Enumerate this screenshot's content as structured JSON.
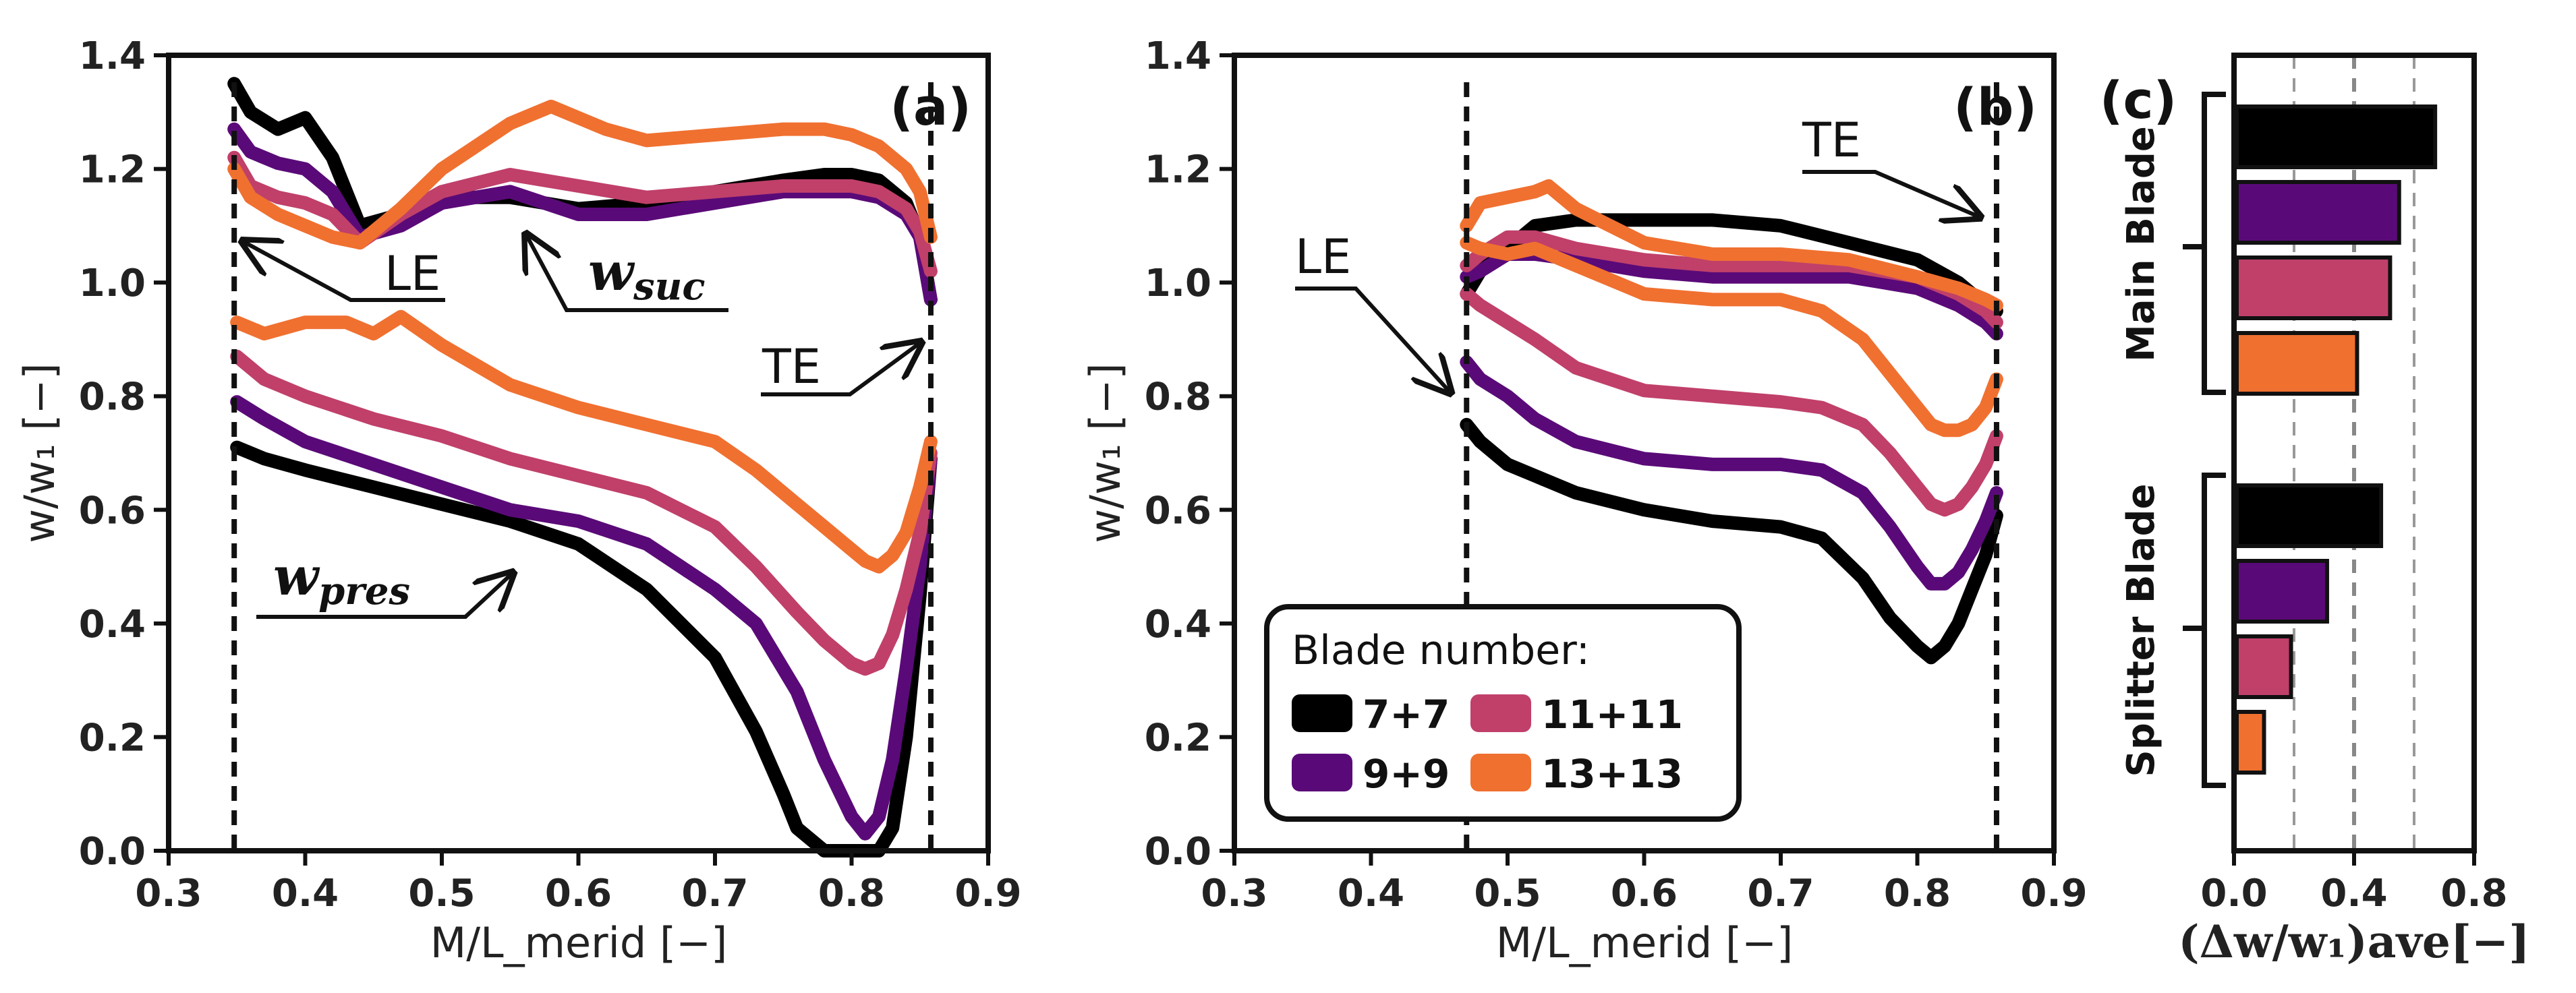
{
  "colors": {
    "7+7": "#000000",
    "9+9": "#5a0a78",
    "11+11": "#c0406a",
    "13+13": "#f07030"
  },
  "chart_data": [
    {
      "type": "line",
      "panel_label": "(a)",
      "xlabel": "M/L_merid [−]",
      "ylabel": "w/w₁ [−]",
      "xlim": [
        0.3,
        0.9
      ],
      "ylim": [
        0.0,
        1.4
      ],
      "xticks": [
        "0.3",
        "0.4",
        "0.5",
        "0.6",
        "0.7",
        "0.8",
        "0.9"
      ],
      "yticks": [
        "0.0",
        "0.2",
        "0.4",
        "0.6",
        "0.8",
        "1.0",
        "1.2",
        "1.4"
      ],
      "annotations": {
        "le": "LE",
        "te": "TE",
        "suction": "w",
        "suction_sub": "suc",
        "pressure": "w",
        "pressure_sub": "pres"
      },
      "reference_lines_x": [
        0.348,
        0.858
      ],
      "series": [
        {
          "name": "7+7 suction",
          "group": "7+7",
          "x": [
            0.348,
            0.36,
            0.38,
            0.4,
            0.42,
            0.44,
            0.47,
            0.5,
            0.55,
            0.6,
            0.65,
            0.7,
            0.75,
            0.78,
            0.8,
            0.82,
            0.84,
            0.85,
            0.858
          ],
          "y": [
            1.35,
            1.3,
            1.27,
            1.29,
            1.22,
            1.1,
            1.12,
            1.15,
            1.15,
            1.13,
            1.14,
            1.16,
            1.18,
            1.19,
            1.19,
            1.18,
            1.14,
            1.08,
            0.97
          ]
        },
        {
          "name": "9+9 suction",
          "group": "9+9",
          "x": [
            0.348,
            0.36,
            0.38,
            0.4,
            0.42,
            0.44,
            0.47,
            0.5,
            0.55,
            0.6,
            0.65,
            0.7,
            0.75,
            0.78,
            0.8,
            0.82,
            0.84,
            0.85,
            0.858
          ],
          "y": [
            1.27,
            1.23,
            1.21,
            1.2,
            1.16,
            1.08,
            1.1,
            1.14,
            1.16,
            1.12,
            1.12,
            1.14,
            1.16,
            1.16,
            1.16,
            1.15,
            1.12,
            1.08,
            0.97
          ]
        },
        {
          "name": "11+11 suction",
          "group": "11+11",
          "x": [
            0.348,
            0.36,
            0.38,
            0.4,
            0.42,
            0.44,
            0.47,
            0.5,
            0.55,
            0.6,
            0.65,
            0.7,
            0.75,
            0.78,
            0.8,
            0.82,
            0.84,
            0.85,
            0.858
          ],
          "y": [
            1.22,
            1.17,
            1.15,
            1.14,
            1.12,
            1.07,
            1.12,
            1.16,
            1.19,
            1.17,
            1.15,
            1.16,
            1.17,
            1.17,
            1.17,
            1.16,
            1.13,
            1.09,
            1.02
          ]
        },
        {
          "name": "13+13 suction",
          "group": "13+13",
          "x": [
            0.348,
            0.36,
            0.38,
            0.4,
            0.42,
            0.44,
            0.47,
            0.5,
            0.55,
            0.58,
            0.62,
            0.65,
            0.7,
            0.75,
            0.78,
            0.8,
            0.82,
            0.84,
            0.85,
            0.858
          ],
          "y": [
            1.2,
            1.15,
            1.12,
            1.1,
            1.08,
            1.07,
            1.13,
            1.2,
            1.28,
            1.31,
            1.27,
            1.25,
            1.26,
            1.27,
            1.27,
            1.26,
            1.24,
            1.2,
            1.16,
            1.08
          ]
        },
        {
          "name": "7+7 pressure",
          "group": "7+7",
          "x": [
            0.35,
            0.37,
            0.4,
            0.45,
            0.5,
            0.55,
            0.6,
            0.65,
            0.7,
            0.73,
            0.75,
            0.76,
            0.78,
            0.8,
            0.81,
            0.82,
            0.83,
            0.84,
            0.85,
            0.858
          ],
          "y": [
            0.71,
            0.69,
            0.67,
            0.64,
            0.61,
            0.58,
            0.54,
            0.46,
            0.34,
            0.21,
            0.1,
            0.04,
            0.0,
            0.0,
            0.0,
            0.0,
            0.04,
            0.2,
            0.45,
            0.69
          ]
        },
        {
          "name": "9+9 pressure",
          "group": "9+9",
          "x": [
            0.35,
            0.37,
            0.4,
            0.45,
            0.5,
            0.55,
            0.6,
            0.65,
            0.7,
            0.73,
            0.76,
            0.78,
            0.8,
            0.81,
            0.82,
            0.83,
            0.84,
            0.85,
            0.858
          ],
          "y": [
            0.79,
            0.76,
            0.72,
            0.68,
            0.64,
            0.6,
            0.58,
            0.54,
            0.46,
            0.4,
            0.28,
            0.16,
            0.06,
            0.03,
            0.06,
            0.16,
            0.32,
            0.5,
            0.69
          ]
        },
        {
          "name": "11+11 pressure",
          "group": "11+11",
          "x": [
            0.35,
            0.37,
            0.4,
            0.45,
            0.5,
            0.55,
            0.6,
            0.65,
            0.7,
            0.73,
            0.76,
            0.78,
            0.8,
            0.81,
            0.82,
            0.83,
            0.84,
            0.85,
            0.858
          ],
          "y": [
            0.87,
            0.83,
            0.8,
            0.76,
            0.73,
            0.69,
            0.66,
            0.63,
            0.57,
            0.5,
            0.42,
            0.37,
            0.33,
            0.32,
            0.33,
            0.38,
            0.46,
            0.56,
            0.7
          ]
        },
        {
          "name": "13+13 pressure",
          "group": "13+13",
          "x": [
            0.35,
            0.37,
            0.4,
            0.43,
            0.45,
            0.47,
            0.5,
            0.55,
            0.6,
            0.65,
            0.7,
            0.73,
            0.76,
            0.78,
            0.8,
            0.81,
            0.82,
            0.83,
            0.84,
            0.85,
            0.858
          ],
          "y": [
            0.93,
            0.91,
            0.93,
            0.93,
            0.91,
            0.94,
            0.89,
            0.82,
            0.78,
            0.75,
            0.72,
            0.67,
            0.61,
            0.57,
            0.53,
            0.51,
            0.5,
            0.52,
            0.56,
            0.64,
            0.72
          ]
        }
      ]
    },
    {
      "type": "line",
      "panel_label": "(b)",
      "xlabel": "M/L_merid [−]",
      "ylabel": "w/w₁ [−]",
      "xlim": [
        0.3,
        0.9
      ],
      "ylim": [
        0.0,
        1.4
      ],
      "xticks": [
        "0.3",
        "0.4",
        "0.5",
        "0.6",
        "0.7",
        "0.8",
        "0.9"
      ],
      "yticks": [
        "0.0",
        "0.2",
        "0.4",
        "0.6",
        "0.8",
        "1.0",
        "1.2",
        "1.4"
      ],
      "annotations": {
        "le": "LE",
        "te": "TE"
      },
      "reference_lines_x": [
        0.47,
        0.858
      ],
      "legend": {
        "title": "Blade number:",
        "entries": [
          "7+7",
          "11+11",
          "9+9",
          "13+13"
        ]
      },
      "series": [
        {
          "name": "7+7 suction",
          "group": "7+7",
          "x": [
            0.47,
            0.48,
            0.5,
            0.52,
            0.55,
            0.6,
            0.65,
            0.7,
            0.75,
            0.8,
            0.83,
            0.85,
            0.858
          ],
          "y": [
            0.98,
            1.02,
            1.06,
            1.1,
            1.11,
            1.11,
            1.11,
            1.1,
            1.07,
            1.04,
            1.0,
            0.96,
            0.95
          ]
        },
        {
          "name": "9+9 suction",
          "group": "9+9",
          "x": [
            0.47,
            0.48,
            0.5,
            0.52,
            0.55,
            0.6,
            0.65,
            0.7,
            0.75,
            0.8,
            0.83,
            0.85,
            0.858
          ],
          "y": [
            1.01,
            1.02,
            1.05,
            1.05,
            1.04,
            1.02,
            1.01,
            1.01,
            1.01,
            0.99,
            0.96,
            0.93,
            0.91
          ]
        },
        {
          "name": "11+11 suction",
          "group": "11+11",
          "x": [
            0.47,
            0.48,
            0.5,
            0.52,
            0.55,
            0.6,
            0.65,
            0.7,
            0.75,
            0.8,
            0.83,
            0.85,
            0.858
          ],
          "y": [
            1.03,
            1.05,
            1.08,
            1.08,
            1.06,
            1.04,
            1.03,
            1.03,
            1.03,
            1.01,
            0.98,
            0.95,
            0.93
          ]
        },
        {
          "name": "13+13 suction",
          "group": "13+13",
          "x": [
            0.47,
            0.48,
            0.5,
            0.52,
            0.53,
            0.55,
            0.6,
            0.65,
            0.7,
            0.75,
            0.8,
            0.83,
            0.85,
            0.858
          ],
          "y": [
            1.1,
            1.14,
            1.15,
            1.16,
            1.17,
            1.13,
            1.07,
            1.05,
            1.05,
            1.04,
            1.01,
            0.99,
            0.97,
            0.96
          ]
        },
        {
          "name": "7+7 pressure",
          "group": "7+7",
          "x": [
            0.47,
            0.48,
            0.5,
            0.52,
            0.55,
            0.6,
            0.65,
            0.7,
            0.73,
            0.76,
            0.78,
            0.8,
            0.81,
            0.82,
            0.83,
            0.84,
            0.85,
            0.858
          ],
          "y": [
            0.75,
            0.72,
            0.68,
            0.66,
            0.63,
            0.6,
            0.58,
            0.57,
            0.55,
            0.48,
            0.41,
            0.36,
            0.34,
            0.36,
            0.4,
            0.46,
            0.52,
            0.59
          ]
        },
        {
          "name": "9+9 pressure",
          "group": "9+9",
          "x": [
            0.47,
            0.48,
            0.5,
            0.52,
            0.55,
            0.6,
            0.65,
            0.7,
            0.73,
            0.76,
            0.78,
            0.8,
            0.81,
            0.82,
            0.83,
            0.84,
            0.85,
            0.858
          ],
          "y": [
            0.86,
            0.83,
            0.8,
            0.76,
            0.72,
            0.69,
            0.68,
            0.68,
            0.67,
            0.63,
            0.57,
            0.5,
            0.47,
            0.47,
            0.49,
            0.53,
            0.58,
            0.63
          ]
        },
        {
          "name": "11+11 pressure",
          "group": "11+11",
          "x": [
            0.47,
            0.48,
            0.5,
            0.52,
            0.55,
            0.6,
            0.65,
            0.7,
            0.73,
            0.76,
            0.78,
            0.8,
            0.81,
            0.82,
            0.83,
            0.84,
            0.85,
            0.858
          ],
          "y": [
            0.98,
            0.96,
            0.93,
            0.9,
            0.85,
            0.81,
            0.8,
            0.79,
            0.78,
            0.75,
            0.7,
            0.64,
            0.61,
            0.6,
            0.61,
            0.64,
            0.68,
            0.73
          ]
        },
        {
          "name": "13+13 pressure",
          "group": "13+13",
          "x": [
            0.47,
            0.48,
            0.5,
            0.52,
            0.55,
            0.6,
            0.65,
            0.7,
            0.73,
            0.76,
            0.78,
            0.8,
            0.81,
            0.82,
            0.83,
            0.84,
            0.85,
            0.858
          ],
          "y": [
            1.07,
            1.06,
            1.05,
            1.06,
            1.03,
            0.98,
            0.97,
            0.97,
            0.95,
            0.9,
            0.84,
            0.78,
            0.75,
            0.74,
            0.74,
            0.75,
            0.78,
            0.83
          ]
        }
      ]
    },
    {
      "type": "bar",
      "orientation": "horizontal",
      "panel_label": "(c)",
      "xlabel": "(Δw/w₁)ave[−]",
      "xlim": [
        0.0,
        0.8
      ],
      "xticks": [
        "0.0",
        "0.4",
        "0.8"
      ],
      "gridlines_x": [
        0.2,
        0.4,
        0.6
      ],
      "groups": [
        {
          "name": "Main Blade",
          "categories": [
            "7+7",
            "9+9",
            "11+11",
            "13+13"
          ],
          "values": [
            0.67,
            0.55,
            0.52,
            0.41
          ]
        },
        {
          "name": "Splitter Blade",
          "categories": [
            "7+7",
            "9+9",
            "11+11",
            "13+13"
          ],
          "values": [
            0.49,
            0.31,
            0.19,
            0.1
          ]
        }
      ]
    }
  ]
}
